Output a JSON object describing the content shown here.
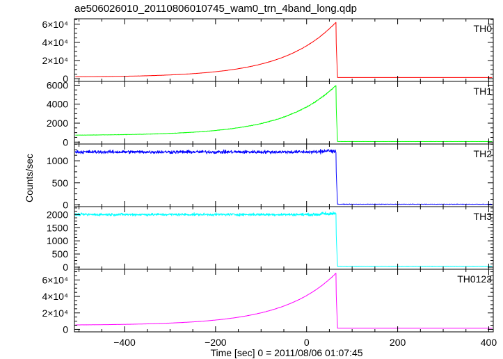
{
  "title": "ae506026010_20110806010745_wam0_trn_4band_long.qdp",
  "chart_data": {
    "type": "line",
    "title": "ae506026010_20110806010745_wam0_trn_4band_long.qdp",
    "xlabel": "Time [sec] 0 = 2011/08/06 01:07:45",
    "ylabel": "Counts/sec",
    "xlim": [
      -510,
      410
    ],
    "x_ticks": [
      {
        "value": -400,
        "label": "−400"
      },
      {
        "value": -200,
        "label": "−200"
      },
      {
        "value": 0,
        "label": "0"
      },
      {
        "value": 200,
        "label": "200"
      },
      {
        "value": 400,
        "label": "400"
      }
    ],
    "grid": false,
    "panels": [
      {
        "name": "TH0",
        "color": "#ff0000",
        "ylim": [
          -3000,
          66000
        ],
        "y_ticks": [
          {
            "value": 0,
            "label": "0"
          },
          {
            "value": 20000,
            "label": "2×10⁴"
          },
          {
            "value": 40000,
            "label": "4×10⁴"
          },
          {
            "value": 60000,
            "label": "6×10⁴"
          }
        ],
        "shape": "rise",
        "base": 1600,
        "peak": 62500,
        "after": 1300,
        "noise": 250
      },
      {
        "name": "TH1",
        "color": "#00ff00",
        "ylim": [
          -200,
          6400
        ],
        "y_ticks": [
          {
            "value": 0,
            "label": "0"
          },
          {
            "value": 2000,
            "label": "2000"
          },
          {
            "value": 4000,
            "label": "4000"
          },
          {
            "value": 6000,
            "label": "6000"
          }
        ],
        "shape": "rise",
        "base": 700,
        "peak": 6000,
        "after": 60,
        "noise": 60
      },
      {
        "name": "TH2",
        "color": "#0000ff",
        "ylim": [
          -40,
          1380
        ],
        "y_ticks": [
          {
            "value": 0,
            "label": "0"
          },
          {
            "value": 500,
            "label": "500"
          },
          {
            "value": 1000,
            "label": "1000"
          }
        ],
        "shape": "flat",
        "base": 1200,
        "peak": 1220,
        "after": 15,
        "noise": 55
      },
      {
        "name": "TH3",
        "color": "#00ffff",
        "ylim": [
          -80,
          2300
        ],
        "y_ticks": [
          {
            "value": 0,
            "label": "0"
          },
          {
            "value": 500,
            "label": "500"
          },
          {
            "value": 1000,
            "label": "1000"
          },
          {
            "value": 1500,
            "label": "1500"
          },
          {
            "value": 2000,
            "label": "2000"
          }
        ],
        "shape": "flat",
        "base": 2000,
        "peak": 2020,
        "after": 25,
        "noise": 75
      },
      {
        "name": "TH0123",
        "color": "#ff00ff",
        "ylim": [
          -3000,
          73000
        ],
        "y_ticks": [
          {
            "value": 0,
            "label": "0"
          },
          {
            "value": 20000,
            "label": "2×10⁴"
          },
          {
            "value": 40000,
            "label": "4×10⁴"
          },
          {
            "value": 60000,
            "label": "6×10⁴"
          }
        ],
        "shape": "rise",
        "base": 5000,
        "peak": 68500,
        "after": 1400,
        "noise": 250
      }
    ],
    "peak_time": 65,
    "drop_time": 68
  }
}
